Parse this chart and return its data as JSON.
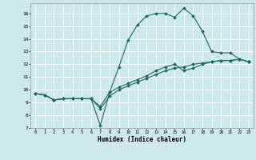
{
  "xlabel": "Humidex (Indice chaleur)",
  "bg_color": "#cce8e8",
  "grid_color": "#ffffff",
  "line_color": "#1a6b5a",
  "xlim": [
    -0.5,
    23.5
  ],
  "ylim": [
    7,
    16.8
  ],
  "yticks": [
    7,
    8,
    9,
    10,
    11,
    12,
    13,
    14,
    15,
    16
  ],
  "xticks": [
    0,
    1,
    2,
    3,
    4,
    5,
    6,
    7,
    8,
    9,
    10,
    11,
    12,
    13,
    14,
    15,
    16,
    17,
    18,
    19,
    20,
    21,
    22,
    23
  ],
  "line1_x": [
    0,
    1,
    2,
    3,
    4,
    5,
    6,
    7,
    8,
    9,
    10,
    11,
    12,
    13,
    14,
    15,
    16,
    17,
    18,
    19,
    20,
    21,
    22,
    23
  ],
  "line1_y": [
    9.7,
    9.6,
    9.2,
    9.3,
    9.3,
    9.3,
    9.3,
    7.2,
    9.8,
    11.8,
    13.9,
    15.1,
    15.8,
    16.0,
    16.0,
    15.7,
    16.4,
    15.8,
    14.6,
    13.0,
    12.9,
    12.9,
    12.4,
    12.2
  ],
  "line2_x": [
    0,
    1,
    2,
    3,
    4,
    5,
    6,
    7,
    8,
    9,
    10,
    11,
    12,
    13,
    14,
    15,
    16,
    17,
    18,
    19,
    20,
    21,
    22,
    23
  ],
  "line2_y": [
    9.7,
    9.6,
    9.2,
    9.3,
    9.3,
    9.3,
    9.3,
    8.7,
    9.8,
    10.2,
    10.5,
    10.8,
    11.1,
    11.5,
    11.8,
    12.0,
    11.5,
    11.7,
    12.0,
    12.2,
    12.3,
    12.3,
    12.4,
    12.2
  ],
  "line3_x": [
    0,
    1,
    2,
    3,
    4,
    5,
    6,
    7,
    8,
    9,
    10,
    11,
    12,
    13,
    14,
    15,
    16,
    17,
    18,
    19,
    20,
    21,
    22,
    23
  ],
  "line3_y": [
    9.7,
    9.6,
    9.2,
    9.3,
    9.3,
    9.3,
    9.3,
    8.5,
    9.5,
    10.0,
    10.3,
    10.6,
    10.9,
    11.2,
    11.5,
    11.7,
    11.8,
    12.0,
    12.1,
    12.2,
    12.3,
    12.3,
    12.4,
    12.2
  ],
  "marker_size": 2.0,
  "line_width": 0.8
}
